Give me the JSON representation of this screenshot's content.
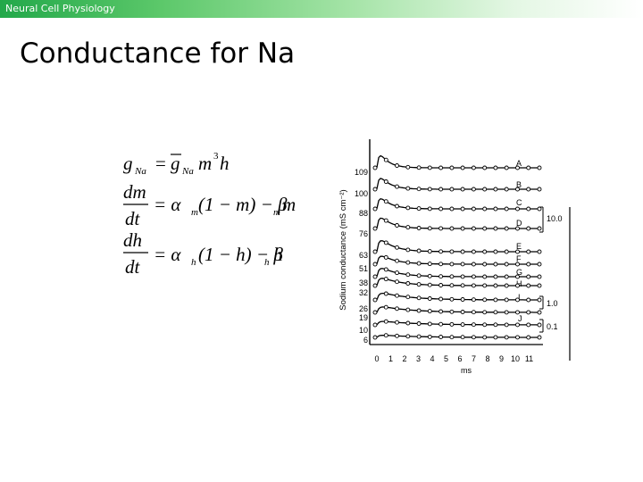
{
  "header": {
    "title": "Neural Cell Physiology"
  },
  "slide": {
    "title": "Conductance for Na"
  },
  "equations": {
    "eq1": {
      "lhs_g": "g",
      "lhs_sub": "Na",
      "equals": "=",
      "gbar": "g",
      "gbar_sub": "Na",
      "rhs": "m",
      "rhs_sup": "3",
      "rhs_tail": "h"
    },
    "eq2": {
      "num": "dm",
      "den": "dt",
      "rhs_a": "= α",
      "rhs_a_sub": "m",
      "rhs_b": "(1 − m) − β",
      "rhs_b_sub": "m",
      "rhs_c": "m"
    },
    "eq3": {
      "num": "dh",
      "den": "dt",
      "rhs_a": "= α",
      "rhs_a_sub": "h",
      "rhs_b": "(1 − h) − β",
      "rhs_b_sub": "h",
      "rhs_c": "h"
    }
  },
  "figure": {
    "ylabel": "Sodium conductance (mS cm⁻²)",
    "xlabel": "ms",
    "x_ticks": [
      "0",
      "1",
      "2",
      "3",
      "4",
      "5",
      "6",
      "7",
      "8",
      "9",
      "10",
      "11"
    ],
    "trace_labels": [
      "A",
      "B",
      "C",
      "D",
      "E",
      "F",
      "G",
      "H",
      "I",
      "J"
    ],
    "left_labels": [
      "109",
      "100",
      "88",
      "76",
      "63",
      "51",
      "38",
      "32",
      "26",
      "19",
      "10",
      "6"
    ],
    "scale_labels": [
      "10.0",
      "1.0",
      "0.1"
    ]
  }
}
